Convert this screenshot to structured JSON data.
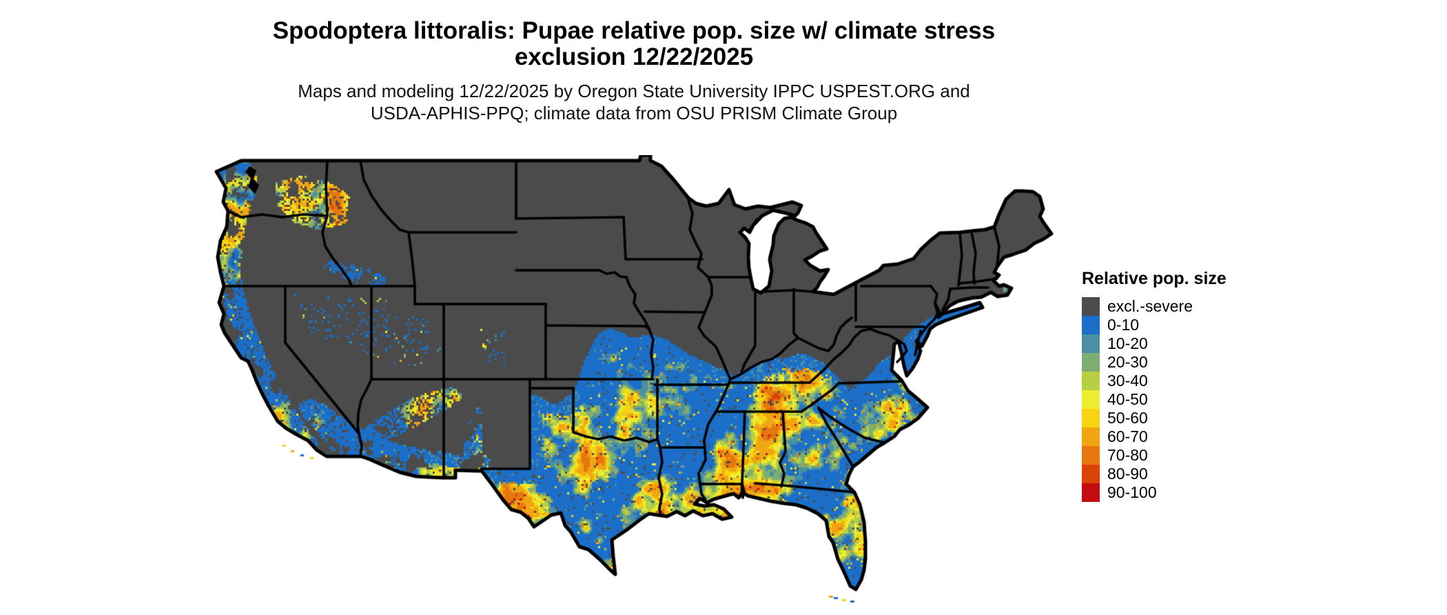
{
  "header": {
    "title_line1": "Spodoptera littoralis: Pupae relative pop. size w/ climate stress",
    "title_line2": "exclusion 12/22/2025",
    "subtitle_line1": "Maps and modeling 12/22/2025 by Oregon State University IPPC USPEST.ORG and",
    "subtitle_line2": "USDA-APHIS-PPQ; climate data from OSU PRISM Climate Group"
  },
  "legend": {
    "title": "Relative pop. size",
    "items": [
      {
        "label": "excl.-severe",
        "color": "#4b4b4b"
      },
      {
        "label": "0-10",
        "color": "#1b6fc8"
      },
      {
        "label": "10-20",
        "color": "#4a8fa2"
      },
      {
        "label": "20-30",
        "color": "#7ead74"
      },
      {
        "label": "30-40",
        "color": "#b8cf44"
      },
      {
        "label": "40-50",
        "color": "#eded33"
      },
      {
        "label": "50-60",
        "color": "#f6d411"
      },
      {
        "label": "60-70",
        "color": "#f0a513"
      },
      {
        "label": "70-80",
        "color": "#e5770e"
      },
      {
        "label": "80-90",
        "color": "#da4408"
      },
      {
        "label": "90-100",
        "color": "#c30d10"
      }
    ]
  },
  "map": {
    "excluded_color": "#4b4b4b",
    "border_color": "#000000",
    "background_color": "#ffffff"
  }
}
